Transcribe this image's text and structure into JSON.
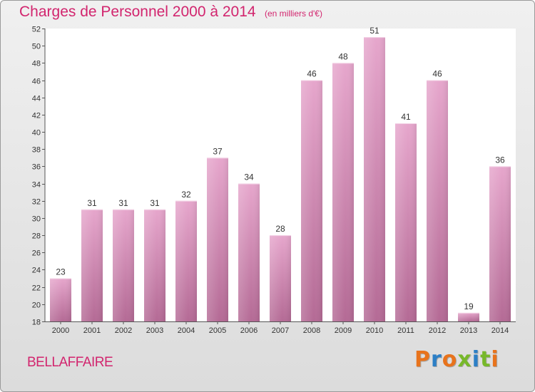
{
  "header": {
    "title": "Charges de Personnel 2000 à 2014",
    "subtitle": "(en milliers d'€)"
  },
  "footer": {
    "city": "BELLAFFAIRE",
    "logo": "Proxiti"
  },
  "colors": {
    "accent": "#d2256e",
    "bar_top": "#e6a6cc",
    "bar_bottom": "#b46a95",
    "logo_letters": [
      "#e8731c",
      "#2c7fc6",
      "#e8731c",
      "#77b82a",
      "#2c7fc6",
      "#77b82a",
      "#e8731c"
    ]
  },
  "chart_data": {
    "type": "bar",
    "categories": [
      "2000",
      "2001",
      "2002",
      "2003",
      "2004",
      "2005",
      "2006",
      "2007",
      "2008",
      "2009",
      "2010",
      "2011",
      "2012",
      "2013",
      "2014"
    ],
    "values": [
      23,
      31,
      31,
      31,
      32,
      37,
      34,
      28,
      46,
      48,
      51,
      41,
      46,
      19,
      36
    ],
    "data_labels": [
      "23",
      "31",
      "31",
      "31",
      "32",
      "37",
      "34",
      "28",
      "46",
      "48",
      "51",
      "41",
      "46",
      "19",
      "36"
    ],
    "yticks": [
      18,
      20,
      22,
      24,
      26,
      28,
      30,
      32,
      34,
      36,
      38,
      40,
      42,
      44,
      46,
      48,
      50,
      52
    ],
    "ylim": [
      18,
      52
    ],
    "title": "Charges de Personnel 2000 à 2014",
    "xlabel": "",
    "ylabel": "",
    "grid": false,
    "legend": "none"
  }
}
